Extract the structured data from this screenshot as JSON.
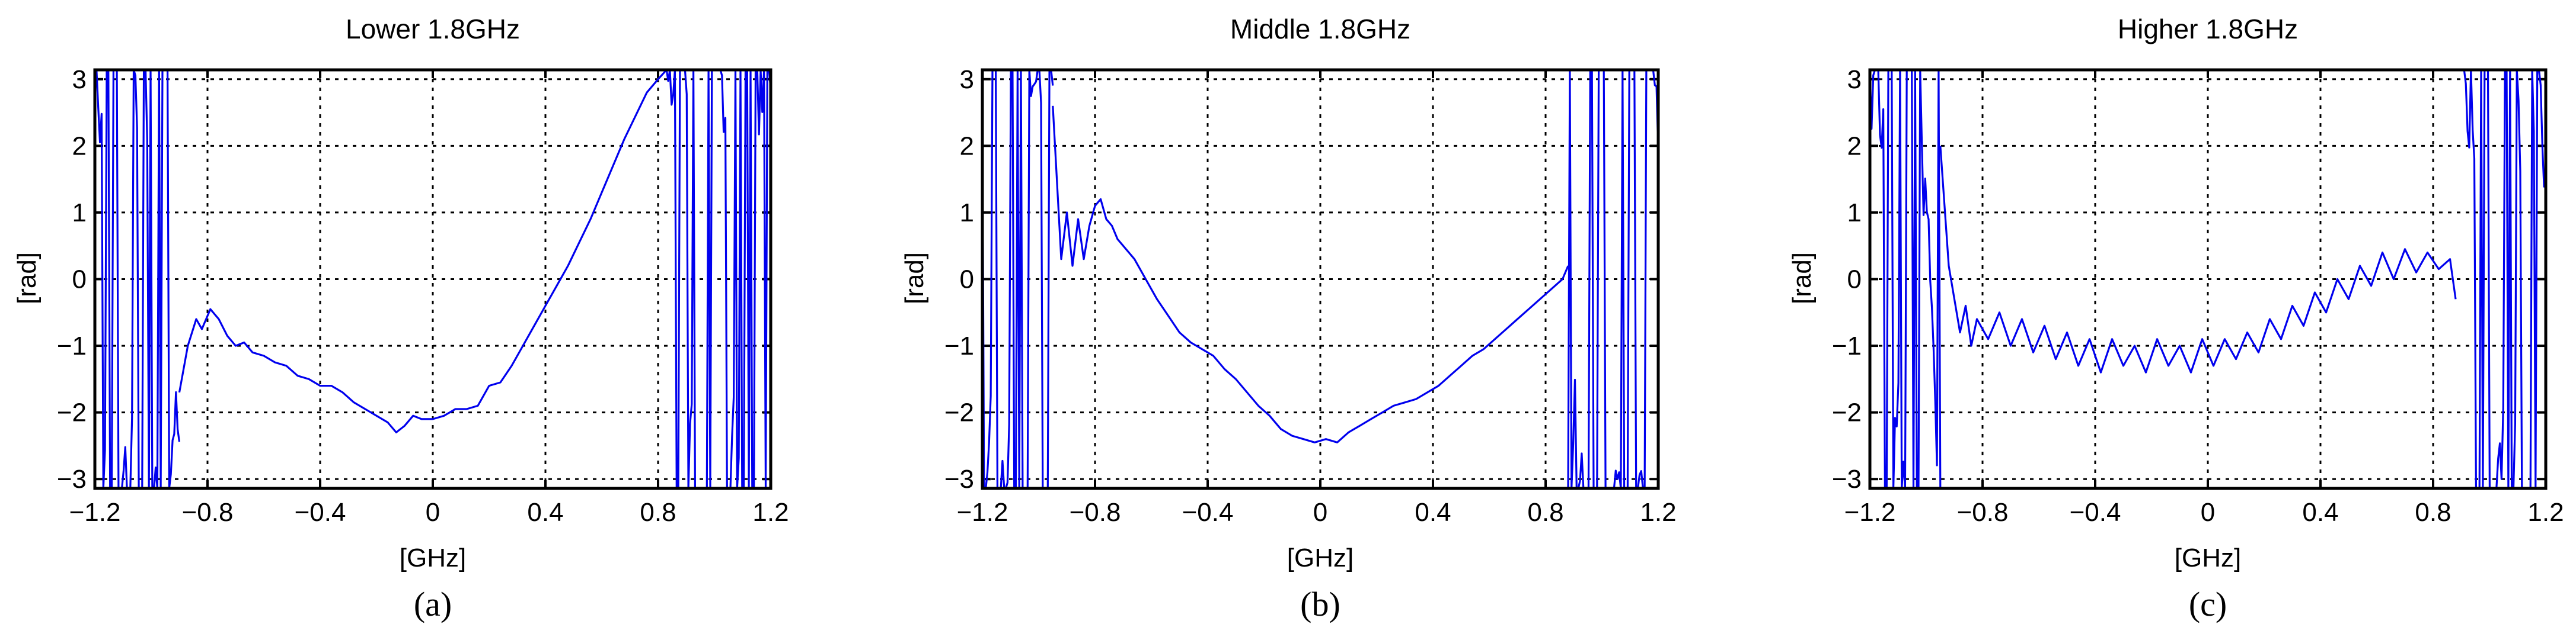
{
  "chart_data": [
    {
      "type": "line",
      "title": "Lower 1.8GHz",
      "xlabel": "[GHz]",
      "ylabel": "[rad]",
      "caption": "(a)",
      "xlim": [
        -1.2,
        1.2
      ],
      "ylim": [
        -3.14,
        3.14
      ],
      "xticks": [
        "-1.2",
        "-0.8",
        "-0.4",
        "0",
        "0.4",
        "0.8",
        "1.2"
      ],
      "yticks": [
        "3",
        "2",
        "1",
        "0",
        "-1",
        "-2",
        "-3"
      ],
      "grid": true,
      "color": "#0000ee",
      "wrap_left": [
        -1.2,
        -0.9
      ],
      "wrap_right": [
        0.83,
        1.2
      ],
      "series": [
        {
          "x": [
            -0.9,
            -0.87,
            -0.84,
            -0.82,
            -0.79,
            -0.76,
            -0.73,
            -0.7,
            -0.67,
            -0.64,
            -0.6,
            -0.56,
            -0.52,
            -0.48,
            -0.44,
            -0.4,
            -0.36,
            -0.32,
            -0.28,
            -0.24,
            -0.2,
            -0.16,
            -0.13,
            -0.1,
            -0.07,
            -0.04,
            0.0,
            0.04,
            0.08,
            0.12,
            0.16,
            0.2,
            0.24,
            0.28,
            0.32,
            0.36,
            0.4,
            0.44,
            0.48,
            0.52,
            0.56,
            0.6,
            0.64,
            0.68,
            0.72,
            0.76,
            0.8,
            0.83
          ],
          "y": [
            -1.7,
            -1.0,
            -0.6,
            -0.75,
            -0.45,
            -0.6,
            -0.85,
            -1.0,
            -0.95,
            -1.1,
            -1.15,
            -1.25,
            -1.3,
            -1.45,
            -1.5,
            -1.6,
            -1.6,
            -1.7,
            -1.85,
            -1.95,
            -2.05,
            -2.15,
            -2.3,
            -2.2,
            -2.05,
            -2.1,
            -2.1,
            -2.05,
            -1.95,
            -1.95,
            -1.9,
            -1.6,
            -1.55,
            -1.3,
            -1.0,
            -0.7,
            -0.4,
            -0.1,
            0.2,
            0.55,
            0.9,
            1.3,
            1.7,
            2.1,
            2.45,
            2.8,
            3.0,
            3.14
          ]
        }
      ]
    },
    {
      "type": "line",
      "title": "Middle 1.8GHz",
      "xlabel": "[GHz]",
      "ylabel": "[rad]",
      "caption": "(b)",
      "xlim": [
        -1.2,
        1.2
      ],
      "ylim": [
        -3.14,
        3.14
      ],
      "xticks": [
        "-1.2",
        "-0.8",
        "-0.4",
        "0",
        "0.4",
        "0.8",
        "1.2"
      ],
      "yticks": [
        "3",
        "2",
        "1",
        "0",
        "-1",
        "-2",
        "-3"
      ],
      "grid": true,
      "color": "#0000ee",
      "wrap_left": [
        -1.2,
        -0.95
      ],
      "wrap_right": [
        0.88,
        1.2
      ],
      "series": [
        {
          "x": [
            -0.95,
            -0.92,
            -0.9,
            -0.88,
            -0.86,
            -0.84,
            -0.82,
            -0.8,
            -0.78,
            -0.76,
            -0.74,
            -0.72,
            -0.7,
            -0.66,
            -0.62,
            -0.58,
            -0.54,
            -0.5,
            -0.46,
            -0.42,
            -0.38,
            -0.34,
            -0.3,
            -0.26,
            -0.22,
            -0.18,
            -0.14,
            -0.1,
            -0.06,
            -0.02,
            0.02,
            0.06,
            0.1,
            0.14,
            0.18,
            0.22,
            0.26,
            0.3,
            0.34,
            0.38,
            0.42,
            0.46,
            0.5,
            0.54,
            0.58,
            0.62,
            0.66,
            0.7,
            0.74,
            0.78,
            0.82,
            0.86,
            0.88
          ],
          "y": [
            2.6,
            0.3,
            1.0,
            0.2,
            0.9,
            0.3,
            0.8,
            1.1,
            1.2,
            0.9,
            0.8,
            0.6,
            0.5,
            0.3,
            0.0,
            -0.3,
            -0.55,
            -0.8,
            -0.95,
            -1.05,
            -1.15,
            -1.35,
            -1.5,
            -1.7,
            -1.9,
            -2.05,
            -2.25,
            -2.35,
            -2.4,
            -2.45,
            -2.4,
            -2.45,
            -2.3,
            -2.2,
            -2.1,
            -2.0,
            -1.9,
            -1.85,
            -1.8,
            -1.7,
            -1.6,
            -1.45,
            -1.3,
            -1.15,
            -1.05,
            -0.9,
            -0.75,
            -0.6,
            -0.45,
            -0.3,
            -0.15,
            0.0,
            0.2
          ]
        }
      ]
    },
    {
      "type": "line",
      "title": "Higher 1.8GHz",
      "xlabel": "[GHz]",
      "ylabel": "[rad]",
      "caption": "(c)",
      "xlim": [
        -1.2,
        1.2
      ],
      "ylim": [
        -3.14,
        3.14
      ],
      "xticks": [
        "-1.2",
        "-0.8",
        "-0.4",
        "0",
        "0.4",
        "0.8",
        "1.2"
      ],
      "yticks": [
        "3",
        "2",
        "1",
        "0",
        "-1",
        "-2",
        "-3"
      ],
      "grid": true,
      "color": "#0000ee",
      "wrap_left": [
        -1.2,
        -0.95
      ],
      "wrap_right": [
        0.88,
        1.2
      ],
      "series": [
        {
          "x": [
            -0.95,
            -0.92,
            -0.9,
            -0.88,
            -0.86,
            -0.84,
            -0.82,
            -0.78,
            -0.74,
            -0.7,
            -0.66,
            -0.62,
            -0.58,
            -0.54,
            -0.5,
            -0.46,
            -0.42,
            -0.38,
            -0.34,
            -0.3,
            -0.26,
            -0.22,
            -0.18,
            -0.14,
            -0.1,
            -0.06,
            -0.02,
            0.02,
            0.06,
            0.1,
            0.14,
            0.18,
            0.22,
            0.26,
            0.3,
            0.34,
            0.38,
            0.42,
            0.46,
            0.5,
            0.54,
            0.58,
            0.62,
            0.66,
            0.7,
            0.74,
            0.78,
            0.82,
            0.86,
            0.88
          ],
          "y": [
            2.0,
            0.2,
            -0.3,
            -0.8,
            -0.4,
            -1.0,
            -0.6,
            -0.9,
            -0.5,
            -1.0,
            -0.6,
            -1.1,
            -0.7,
            -1.2,
            -0.8,
            -1.3,
            -0.9,
            -1.4,
            -0.9,
            -1.3,
            -1.0,
            -1.4,
            -0.9,
            -1.3,
            -1.0,
            -1.4,
            -0.9,
            -1.3,
            -0.9,
            -1.2,
            -0.8,
            -1.1,
            -0.6,
            -0.9,
            -0.4,
            -0.7,
            -0.2,
            -0.5,
            0.0,
            -0.3,
            0.2,
            -0.1,
            0.4,
            0.0,
            0.45,
            0.1,
            0.4,
            0.15,
            0.3,
            -0.3
          ]
        }
      ]
    }
  ]
}
